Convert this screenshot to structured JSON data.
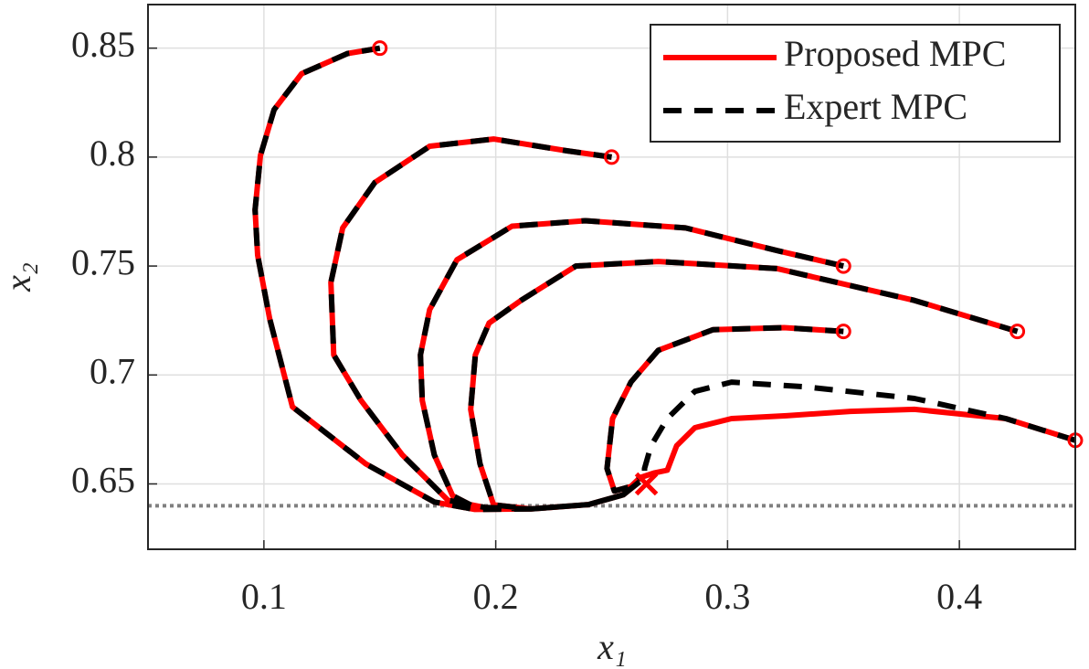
{
  "chart_data": {
    "type": "line",
    "xlabel": "x₁",
    "ylabel": "x₂",
    "xlim": [
      0.05,
      0.45
    ],
    "ylim": [
      0.62,
      0.87
    ],
    "xticks": [
      0.1,
      0.2,
      0.3,
      0.4
    ],
    "yticks": [
      0.65,
      0.7,
      0.75,
      0.8,
      0.85
    ],
    "grid": true,
    "legend": "northeast",
    "series": [
      {
        "name": "Proposed MPC",
        "color": "#ff0000",
        "dashed": false,
        "x": [
          0.15,
          0.136,
          0.1163,
          0.1044,
          0.0985,
          0.0962,
          0.0973,
          0.1025,
          0.1123,
          0.1439,
          0.1735,
          0.191,
          0.215,
          0.24,
          0.255,
          0.262,
          null,
          0.25,
          0.2307,
          0.1991,
          0.1715,
          0.1478,
          0.134,
          0.1289,
          0.1301,
          0.1419,
          0.1597,
          0.1794,
          0.1952,
          0.215,
          0.24,
          0.255,
          0.262,
          null,
          0.35,
          0.3214,
          0.2819,
          0.2386,
          0.207,
          0.1833,
          0.1715,
          0.1675,
          0.1683,
          0.1735,
          0.1814,
          0.1912,
          0.215,
          0.24,
          0.255,
          0.262,
          null,
          0.425,
          0.3806,
          0.3214,
          0.2701,
          0.2346,
          0.2109,
          0.1971,
          0.1912,
          0.1892,
          0.1932,
          0.1991,
          0.215,
          0.24,
          0.255,
          0.262,
          null,
          0.35,
          0.3244,
          0.2938,
          0.2701,
          0.2583,
          0.2504,
          0.248,
          0.2512,
          0.2583,
          0.2622,
          null,
          0.45,
          0.42,
          0.3806,
          0.353,
          0.3254,
          0.3017,
          0.2859,
          0.278,
          0.274,
          0.2682,
          0.2622
        ],
        "values": [
          0.85,
          0.8475,
          0.8383,
          0.8217,
          0.8008,
          0.7758,
          0.755,
          0.7258,
          0.6854,
          0.6592,
          0.6417,
          0.6383,
          0.6385,
          0.6405,
          0.645,
          0.651,
          null,
          0.8,
          0.8029,
          0.8083,
          0.805,
          0.7883,
          0.7675,
          0.7425,
          0.7092,
          0.6883,
          0.6633,
          0.6425,
          0.6392,
          0.6385,
          0.6405,
          0.645,
          0.651,
          null,
          0.75,
          0.7571,
          0.7675,
          0.7708,
          0.7683,
          0.7529,
          0.73,
          0.7092,
          0.6883,
          0.6633,
          0.6446,
          0.6392,
          0.6385,
          0.6405,
          0.645,
          0.651,
          null,
          0.72,
          0.7342,
          0.7488,
          0.7521,
          0.75,
          0.7342,
          0.7238,
          0.7092,
          0.6842,
          0.6592,
          0.6404,
          0.6385,
          0.6405,
          0.645,
          0.651,
          null,
          0.72,
          0.7217,
          0.7208,
          0.7113,
          0.6967,
          0.68,
          0.6571,
          0.6467,
          0.6488,
          0.6529,
          null,
          0.67,
          0.68,
          0.6842,
          0.6833,
          0.6813,
          0.68,
          0.6758,
          0.6675,
          0.6563,
          0.655,
          0.6529
        ]
      },
      {
        "name": "Expert MPC",
        "color": "#000000",
        "dashed": true,
        "x": [
          0.15,
          0.136,
          0.1163,
          0.1044,
          0.0985,
          0.0962,
          0.0973,
          0.1025,
          0.1123,
          0.1439,
          0.1735,
          0.191,
          0.215,
          0.24,
          0.255,
          0.262,
          null,
          0.25,
          0.2307,
          0.1991,
          0.1715,
          0.1478,
          0.134,
          0.1289,
          0.1301,
          0.1419,
          0.1597,
          0.1794,
          0.1952,
          0.215,
          0.24,
          0.255,
          0.262,
          null,
          0.35,
          0.3214,
          0.2819,
          0.2386,
          0.207,
          0.1833,
          0.1715,
          0.1675,
          0.1683,
          0.1735,
          0.1814,
          0.1912,
          0.215,
          0.24,
          0.255,
          0.262,
          null,
          0.425,
          0.3806,
          0.3214,
          0.2701,
          0.2346,
          0.2109,
          0.1971,
          0.1912,
          0.1892,
          0.1932,
          0.1991,
          0.215,
          0.24,
          0.255,
          0.262,
          null,
          0.35,
          0.3244,
          0.2938,
          0.2701,
          0.2583,
          0.2504,
          0.248,
          0.2512,
          0.2583,
          0.2622,
          null,
          0.45,
          0.42,
          0.3806,
          0.3333,
          0.3017,
          0.2859,
          0.274,
          0.267,
          0.2642,
          0.2642
        ],
        "values": [
          0.85,
          0.8475,
          0.8383,
          0.8217,
          0.8008,
          0.7758,
          0.755,
          0.7258,
          0.6854,
          0.6592,
          0.6417,
          0.6383,
          0.6385,
          0.6405,
          0.645,
          0.651,
          null,
          0.8,
          0.8029,
          0.8083,
          0.805,
          0.7883,
          0.7675,
          0.7425,
          0.7092,
          0.6883,
          0.6633,
          0.6425,
          0.6392,
          0.6385,
          0.6405,
          0.645,
          0.651,
          null,
          0.75,
          0.7571,
          0.7675,
          0.7708,
          0.7683,
          0.7529,
          0.73,
          0.7092,
          0.6883,
          0.6633,
          0.6446,
          0.6392,
          0.6385,
          0.6405,
          0.645,
          0.651,
          null,
          0.72,
          0.7342,
          0.7488,
          0.7521,
          0.75,
          0.7342,
          0.7238,
          0.7092,
          0.6842,
          0.6592,
          0.6404,
          0.6385,
          0.6405,
          0.645,
          0.651,
          null,
          0.72,
          0.7217,
          0.7208,
          0.7113,
          0.6967,
          0.68,
          0.6571,
          0.6467,
          0.6488,
          0.6529,
          null,
          0.67,
          0.68,
          0.6892,
          0.6946,
          0.6967,
          0.6925,
          0.68,
          0.6675,
          0.6571,
          0.6529
        ]
      }
    ],
    "start_points": {
      "color": "#ff0000",
      "x": [
        0.15,
        0.25,
        0.35,
        0.425,
        0.35,
        0.45
      ],
      "y": [
        0.85,
        0.8,
        0.75,
        0.72,
        0.72,
        0.67
      ]
    },
    "target": {
      "color": "#ff0000",
      "x": 0.265,
      "y": 0.65
    },
    "reference_line": {
      "y": 0.64,
      "color": "#808080"
    }
  }
}
